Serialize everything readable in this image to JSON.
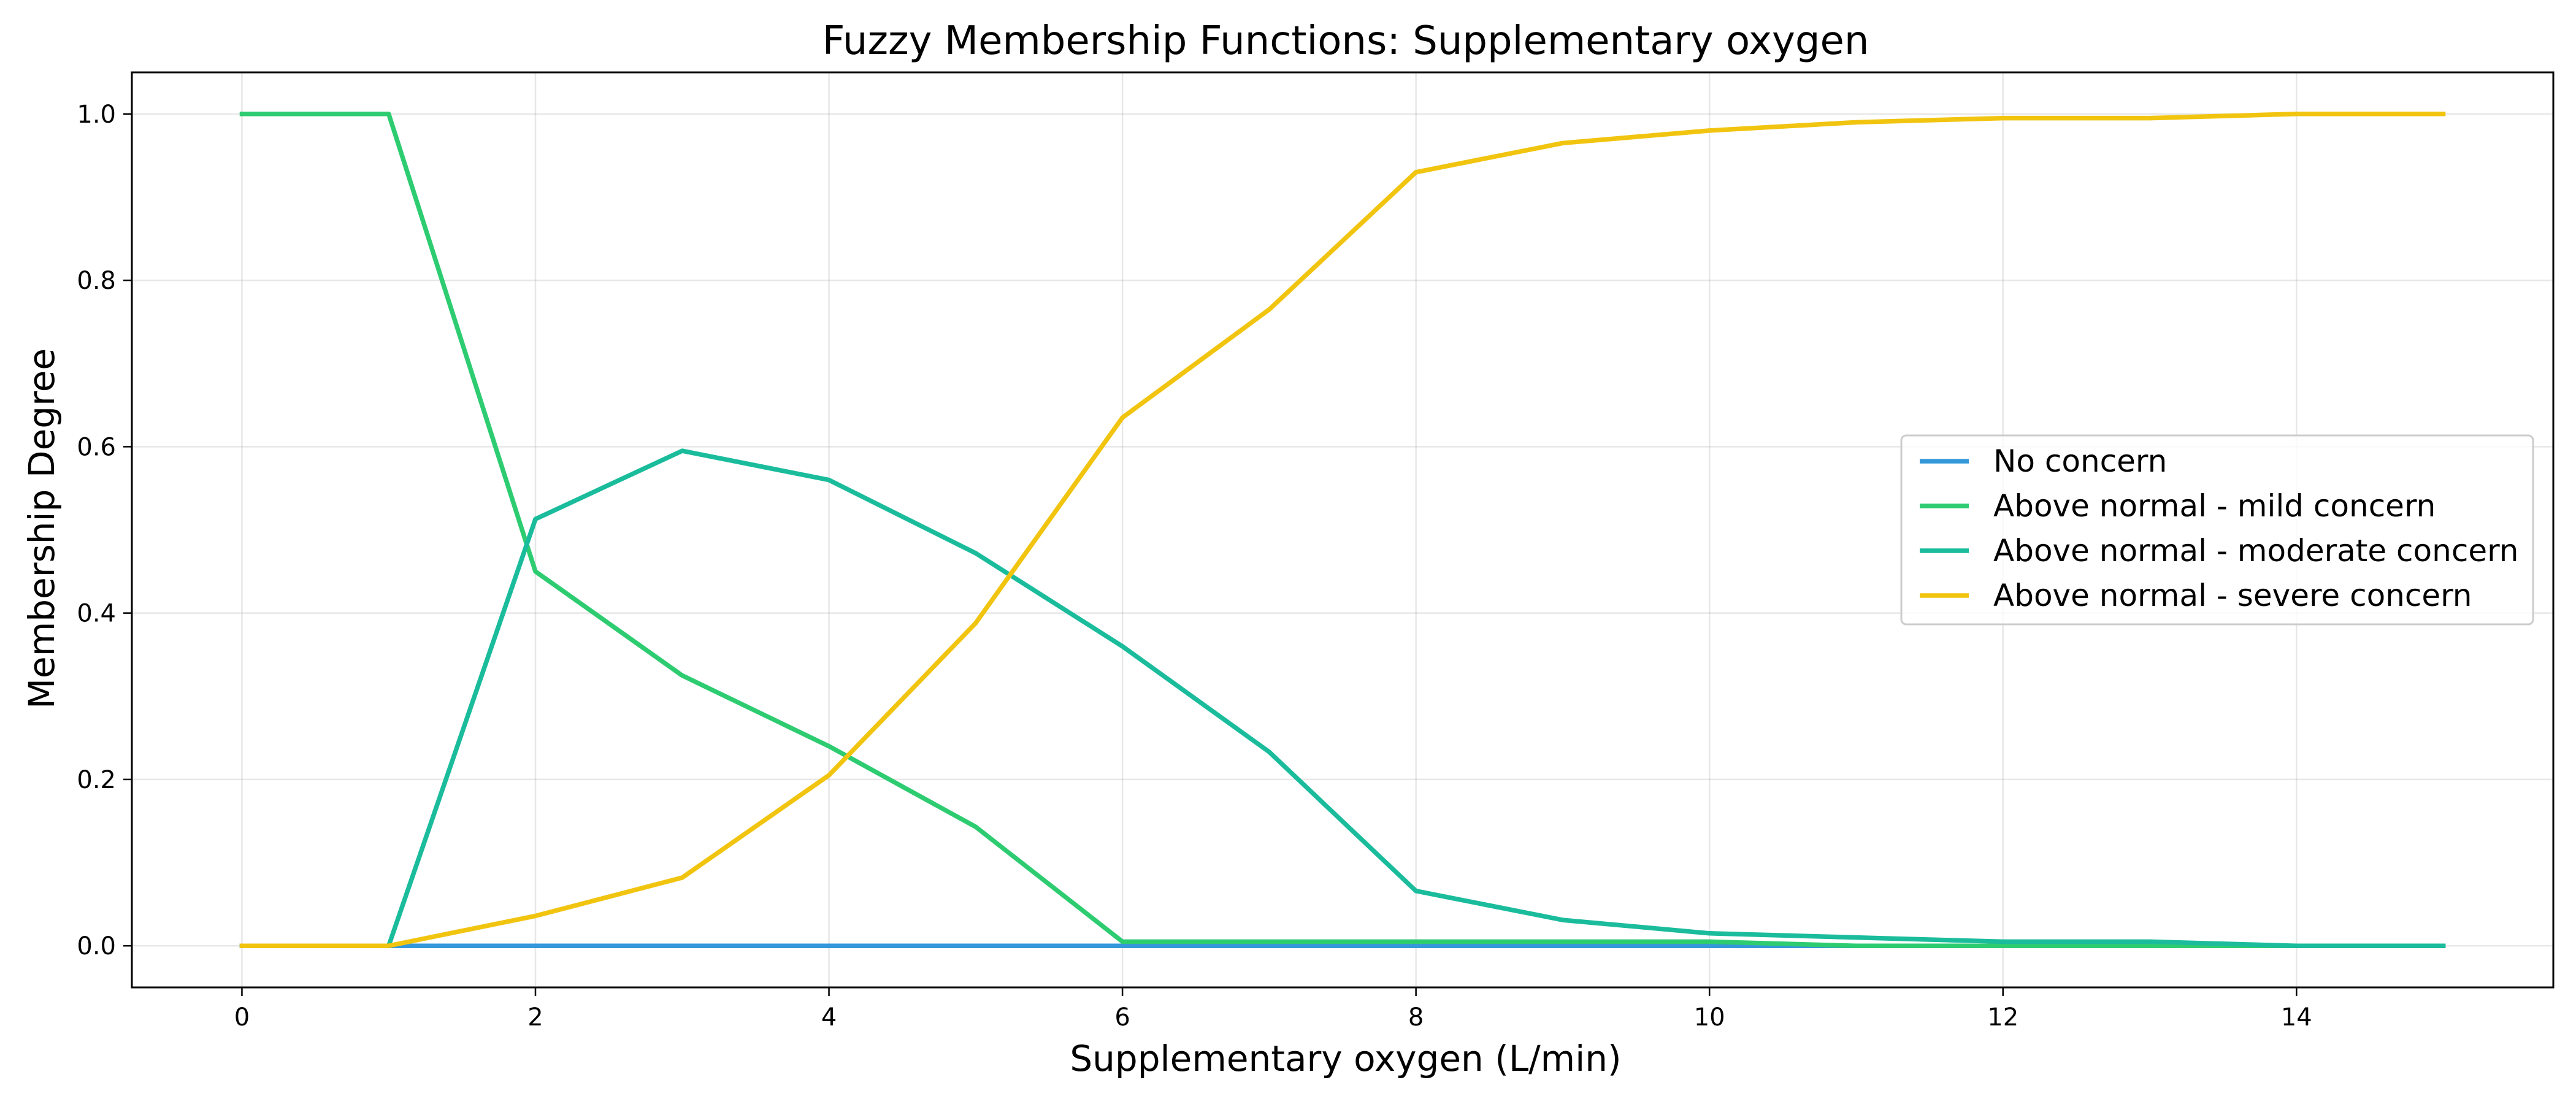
{
  "chart_data": {
    "type": "line",
    "title": "Fuzzy Membership Functions: Supplementary oxygen",
    "xlabel": "Supplementary oxygen (L/min)",
    "ylabel": "Membership Degree",
    "xlim": [
      -0.75,
      15.75
    ],
    "ylim": [
      -0.05,
      1.05
    ],
    "xticks": [
      0,
      2,
      4,
      6,
      8,
      10,
      12,
      14
    ],
    "yticks": [
      0.0,
      0.2,
      0.4,
      0.6,
      0.8,
      1.0
    ],
    "xtick_labels": [
      "0",
      "2",
      "4",
      "6",
      "8",
      "10",
      "12",
      "14"
    ],
    "ytick_labels": [
      "0.0",
      "0.2",
      "0.4",
      "0.6",
      "0.8",
      "1.0"
    ],
    "grid": true,
    "legend_position": "center-right",
    "x": [
      0,
      1,
      2,
      3,
      4,
      5,
      6,
      7,
      8,
      9,
      10,
      11,
      12,
      13,
      14,
      15
    ],
    "series": [
      {
        "name": "No concern",
        "color": "#3498db",
        "values": [
          0,
          0,
          0,
          0,
          0,
          0,
          0,
          0,
          0,
          0,
          0,
          0,
          0,
          0,
          0,
          0
        ]
      },
      {
        "name": "Above normal - mild concern",
        "color": "#2ecc71",
        "values": [
          1.0,
          1.0,
          0.45,
          0.325,
          0.24,
          0.143,
          0.005,
          0.005,
          0.005,
          0.005,
          0.005,
          0.0,
          0.0,
          0.0,
          0.0,
          0.0
        ]
      },
      {
        "name": "Above normal - moderate concern",
        "color": "#1abc9c",
        "values": [
          0.0,
          0.0,
          0.513,
          0.595,
          0.56,
          0.472,
          0.36,
          0.233,
          0.066,
          0.031,
          0.015,
          0.01,
          0.005,
          0.005,
          0.0,
          0.0
        ]
      },
      {
        "name": "Above normal - severe concern",
        "color": "#f1c40f",
        "values": [
          0.0,
          0.0,
          0.036,
          0.082,
          0.205,
          0.388,
          0.635,
          0.765,
          0.93,
          0.965,
          0.98,
          0.99,
          0.995,
          0.995,
          1.0,
          1.0
        ]
      }
    ]
  }
}
